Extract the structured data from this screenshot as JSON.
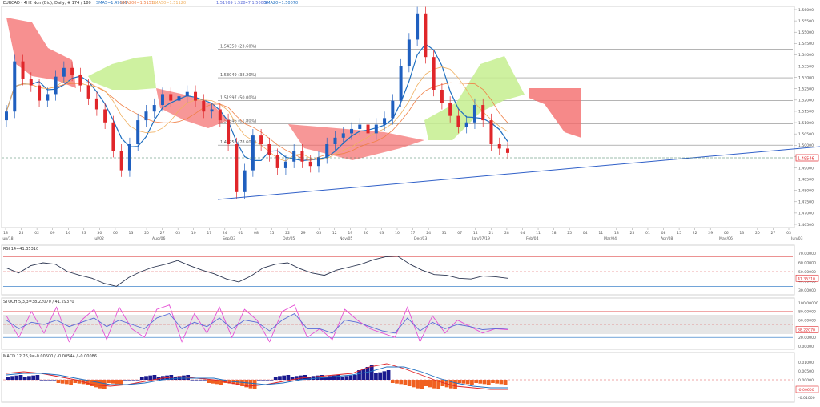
{
  "header": {
    "symbol": "EURCAD - 4H2 Non (Bid), Daily, # 174 / 180",
    "sma1": "SMA5=1.49691",
    "sma2": "SMA200=1.51511",
    "sma3": "SMA50=1.51120",
    "ichimoku": "1.51769 1.52847 1.50000",
    "sma4": "SMA20=1.50070"
  },
  "colors": {
    "up": "#1f5fbf",
    "down": "#e0262a",
    "kumo_bull": "#c6ef8f",
    "kumo_bear": "#f46b6b",
    "sma20": "#1f6fc0",
    "sma200": "#f07f45",
    "sma50": "#f0b060",
    "tenkan": "#cf3b3b",
    "rsi": "#2b3550",
    "stoch_k": "#e54fd5",
    "stoch_d": "#5a6bd8",
    "macd_hist_pos": "#1a1a8f",
    "macd_hist_neg": "#f06020",
    "trendline": "#3060c8",
    "hline": "#888888",
    "level_red": "#e05050",
    "axis_text": "#555555"
  },
  "main_axis": {
    "y_ticks": [
      "1.56000",
      "1.55500",
      "1.55000",
      "1.54500",
      "1.54000",
      "1.53500",
      "1.53000",
      "1.52500",
      "1.52000",
      "1.51500",
      "1.51000",
      "1.50500",
      "1.50000",
      "1.49500",
      "1.49000",
      "1.48500",
      "1.48000",
      "1.47500",
      "1.47000",
      "1.46500"
    ],
    "current_price": "1.49546"
  },
  "x_axis": {
    "days": [
      "18",
      "25",
      "02",
      "09",
      "16",
      "23",
      "30",
      "06",
      "13",
      "20",
      "27",
      "03",
      "10",
      "17",
      "24",
      "01",
      "08",
      "15",
      "22",
      "29",
      "05",
      "12",
      "19",
      "26",
      "03",
      "10",
      "17",
      "24",
      "31",
      "07",
      "14",
      "21",
      "28",
      "04",
      "11",
      "18",
      "25",
      "04",
      "11",
      "18",
      "25",
      "01",
      "08",
      "15",
      "22",
      "29",
      "06",
      "13",
      "20",
      "27",
      "03"
    ],
    "months": [
      "Jun/18",
      "Jul/02",
      "Aug/06",
      "Sep/03",
      "Oct/05",
      "Nov/05",
      "Dec/03",
      "Jan/07/19",
      "Feb/04",
      "Mar/04",
      "Apr/08",
      "May/06",
      "Jun/03",
      "Jul/08"
    ]
  },
  "fib_levels": [
    "1.54350 (23.60%)",
    "1.53049 (38.20%)",
    "1.51997 (50.00%)",
    "1.50946 (61.80%)",
    "1.49956 (78.60%)"
  ],
  "rsi_panel": {
    "label": "RSI 14=41.35310",
    "ticks": [
      "70.00000",
      "60.00000",
      "50.00000",
      "40.00000",
      "30.00000"
    ],
    "current": "41.35310"
  },
  "stoch_panel": {
    "label": "STOCH 5,3,3=38.22070 / 41.29370",
    "ticks": [
      "100.00000",
      "80.00000",
      "60.00000",
      "40.00000",
      "20.00000",
      "0.00000"
    ],
    "current": "38.22070"
  },
  "macd_panel": {
    "label": "MACD 12,26,9=-0.00600 / -0.00544 / -0.00086",
    "ticks": [
      "0.01000",
      "0.00500",
      "0.00000",
      "-0.00500",
      "-0.01000"
    ],
    "current": "-0.00600"
  },
  "chart_data": {
    "type": "candlestick",
    "title": "EURCAD Daily",
    "x_labels": [
      "Jun/18",
      "Jul/02",
      "Aug/06",
      "Sep/03",
      "Oct/05",
      "Nov/05",
      "Dec/03",
      "Jan/07/19",
      "Feb/04",
      "Mar/04",
      "Apr/08",
      "May/06",
      "Jun/03",
      "Jul/08"
    ],
    "close_series": [
      1.515,
      1.538,
      1.53,
      1.527,
      1.52,
      1.523,
      1.531,
      1.535,
      1.532,
      1.527,
      1.521,
      1.516,
      1.51,
      1.497,
      1.488,
      1.5,
      1.511,
      1.515,
      1.518,
      1.523,
      1.52,
      1.522,
      1.524,
      1.52,
      1.515,
      1.516,
      1.511,
      1.5,
      1.478,
      1.488,
      1.504,
      1.5,
      1.495,
      1.489,
      1.492,
      1.497,
      1.492,
      1.49,
      1.494,
      1.5,
      1.503,
      1.505,
      1.507,
      1.509,
      1.505,
      1.509,
      1.512,
      1.52,
      1.536,
      1.548,
      1.56,
      1.54,
      1.525,
      1.519,
      1.513,
      1.508,
      1.51,
      1.518,
      1.511,
      1.5,
      1.498,
      1.496
    ],
    "ylim": [
      1.4625,
      1.5625
    ],
    "fib_prices": [
      1.5435,
      1.53049,
      1.51997,
      1.50946,
      1.49956
    ],
    "indicators": {
      "rsi": [
        55,
        48,
        58,
        62,
        60,
        50,
        45,
        41,
        34,
        30,
        42,
        50,
        56,
        60,
        65,
        58,
        52,
        47,
        40,
        36,
        44,
        55,
        60,
        62,
        54,
        48,
        45,
        52,
        56,
        60,
        66,
        70,
        71,
        60,
        52,
        46,
        45,
        41,
        40,
        44,
        43,
        41
      ],
      "stoch_k": [
        70,
        20,
        80,
        30,
        90,
        10,
        60,
        85,
        15,
        90,
        40,
        20,
        85,
        95,
        10,
        75,
        30,
        90,
        20,
        85,
        60,
        10,
        80,
        95,
        20,
        40,
        15,
        85,
        60,
        40,
        30,
        20,
        90,
        10,
        70,
        30,
        60,
        45,
        30,
        40,
        38
      ],
      "stoch_d": [
        60,
        40,
        55,
        50,
        60,
        45,
        55,
        65,
        45,
        60,
        50,
        40,
        65,
        75,
        40,
        55,
        45,
        65,
        40,
        60,
        55,
        35,
        60,
        75,
        40,
        40,
        30,
        60,
        55,
        45,
        35,
        30,
        65,
        35,
        55,
        40,
        50,
        45,
        38,
        40,
        41
      ],
      "macd": [
        0.004,
        0.005,
        0.004,
        0.002,
        0.0,
        -0.003,
        -0.004,
        -0.003,
        -0.001,
        0.001,
        0.002,
        0.001,
        0.0,
        -0.002,
        -0.004,
        -0.003,
        -0.001,
        0.001,
        0.002,
        0.003,
        0.004,
        0.008,
        0.01,
        0.007,
        0.003,
        -0.001,
        -0.004,
        -0.005,
        -0.006,
        -0.006
      ],
      "macd_signal": [
        0.003,
        0.004,
        0.004,
        0.003,
        0.001,
        -0.001,
        -0.003,
        -0.003,
        -0.002,
        0.0,
        0.001,
        0.001,
        0.001,
        -0.001,
        -0.002,
        -0.003,
        -0.002,
        0.0,
        0.001,
        0.002,
        0.003,
        0.005,
        0.008,
        0.008,
        0.005,
        0.001,
        -0.002,
        -0.004,
        -0.005,
        -0.005
      ],
      "macd_hist": [
        0.001,
        0.001,
        0.0,
        -0.001,
        -0.001,
        -0.002,
        -0.001,
        0.0,
        0.001,
        0.001,
        0.001,
        0.0,
        -0.001,
        -0.001,
        -0.002,
        0.0,
        0.001,
        0.001,
        0.001,
        0.001,
        0.001,
        0.003,
        0.002,
        -0.001,
        -0.002,
        -0.002,
        -0.002,
        -0.001,
        -0.001,
        -0.001
      ]
    }
  }
}
